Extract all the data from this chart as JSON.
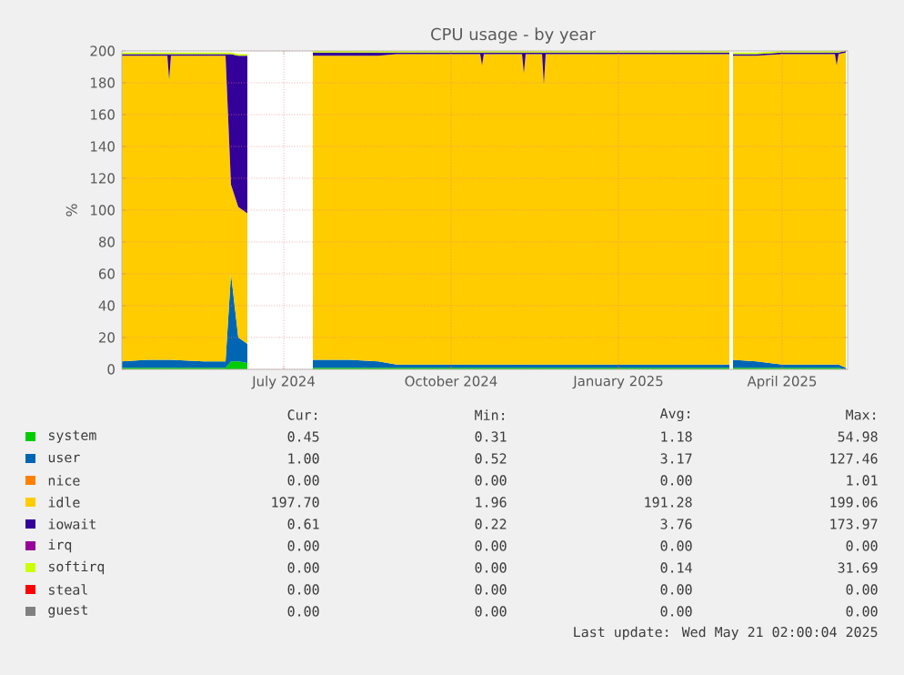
{
  "chart_data": {
    "type": "area",
    "stacked": true,
    "title": "CPU usage - by year",
    "ylabel": "%",
    "x": [
      "2024-04-17",
      "2024-05-01",
      "2024-05-12",
      "2024-05-13",
      "2024-05-14",
      "2024-06-01",
      "2024-06-13",
      "2024-06-16",
      "2024-06-20",
      "2024-06-25",
      "2024-07-10",
      "2024-07-31",
      "2024-08-20",
      "2024-09-05",
      "2024-09-15",
      "2024-10-31",
      "2024-11-01",
      "2024-11-02",
      "2024-11-23",
      "2024-11-24",
      "2024-11-25",
      "2024-12-04",
      "2024-12-05",
      "2024-12-06",
      "2025-01-15",
      "2025-02-15",
      "2025-03-17",
      "2025-03-18",
      "2025-03-19",
      "2025-04-01",
      "2025-04-15",
      "2025-05-14",
      "2025-05-15",
      "2025-05-16",
      "2025-05-20"
    ],
    "series": [
      {
        "name": "system",
        "color": "#00cc00",
        "values": [
          1,
          1,
          1,
          1,
          1,
          1,
          1,
          5,
          5,
          4,
          null,
          1,
          1,
          1,
          1,
          1,
          1,
          1,
          1,
          1,
          1,
          1,
          1,
          1,
          1,
          1,
          1,
          null,
          1,
          1,
          1,
          1,
          1,
          1,
          0
        ]
      },
      {
        "name": "user",
        "color": "#0066b3",
        "values": [
          4,
          5,
          5,
          5,
          5,
          4,
          4,
          55,
          15,
          12,
          null,
          5,
          5,
          4,
          2,
          2,
          2,
          2,
          2,
          2,
          2,
          2,
          2,
          2,
          2,
          2,
          2,
          null,
          5,
          4,
          2,
          2,
          2,
          2,
          1
        ]
      },
      {
        "name": "nice",
        "color": "#ff8000",
        "values": [
          null,
          null,
          null,
          null,
          null,
          null,
          null,
          null,
          null,
          null,
          null,
          null,
          null,
          null,
          null,
          null,
          null,
          null,
          null,
          null,
          null,
          null,
          null,
          null,
          null,
          null,
          null,
          null,
          null,
          null,
          null,
          null,
          null,
          null,
          null
        ]
      },
      {
        "name": "idle",
        "color": "#ffcc00",
        "values": [
          192,
          191,
          191,
          176,
          191,
          192,
          192,
          56,
          82,
          82,
          null,
          191,
          191,
          192,
          195,
          195,
          188,
          195,
          195,
          183,
          195,
          195,
          176,
          195,
          195,
          195,
          195,
          null,
          191,
          192,
          195,
          195,
          188,
          195,
          198
        ]
      },
      {
        "name": "iowait",
        "color": "#330099",
        "values": [
          1,
          1,
          1,
          16,
          1,
          1,
          1,
          82,
          95,
          99,
          null,
          2,
          2,
          2,
          1,
          1,
          8,
          1,
          1,
          13,
          1,
          1,
          20,
          1,
          1,
          1,
          1,
          null,
          1,
          1,
          1,
          1,
          8,
          1,
          1
        ]
      },
      {
        "name": "irq",
        "color": "#990099",
        "values": [
          null,
          null,
          null,
          null,
          null,
          null,
          null,
          null,
          null,
          null,
          null,
          null,
          null,
          null,
          null,
          null,
          null,
          null,
          null,
          null,
          null,
          null,
          null,
          null,
          null,
          null,
          null,
          null,
          null,
          null,
          null,
          null,
          null,
          null,
          null
        ]
      },
      {
        "name": "softirq",
        "color": "#ccff00",
        "values": [
          1,
          1,
          1,
          1,
          1,
          1,
          1,
          1,
          1,
          1,
          null,
          1,
          1,
          1,
          1,
          1,
          1,
          1,
          1,
          1,
          1,
          1,
          1,
          1,
          1,
          1,
          1,
          null,
          1,
          1,
          1,
          1,
          1,
          1,
          0
        ]
      },
      {
        "name": "steal",
        "color": "#ff0000",
        "values": [
          null,
          null,
          null,
          null,
          null,
          null,
          null,
          null,
          null,
          null,
          null,
          null,
          null,
          null,
          null,
          null,
          null,
          null,
          null,
          null,
          null,
          null,
          null,
          null,
          null,
          null,
          null,
          null,
          null,
          null,
          null,
          null,
          null,
          null,
          null
        ]
      },
      {
        "name": "guest",
        "color": "#808080",
        "values": [
          null,
          null,
          null,
          null,
          null,
          null,
          null,
          null,
          null,
          null,
          null,
          null,
          null,
          null,
          null,
          null,
          null,
          null,
          null,
          null,
          null,
          null,
          null,
          null,
          null,
          null,
          null,
          null,
          null,
          null,
          null,
          null,
          null,
          null,
          null
        ]
      }
    ],
    "xlim": [
      "2024-04-17",
      "2025-05-21"
    ],
    "xticks": [
      {
        "value": "2024-07-15",
        "label": "July 2024"
      },
      {
        "value": "2024-10-15",
        "label": "October 2024"
      },
      {
        "value": "2025-01-15",
        "label": "January 2025"
      },
      {
        "value": "2025-04-15",
        "label": "April 2025"
      }
    ],
    "ylim": [
      0,
      200
    ],
    "yticks": [
      0,
      20,
      40,
      60,
      80,
      100,
      120,
      140,
      160,
      180,
      200
    ],
    "grid": true,
    "legend": "bottom",
    "annotations": [
      "Cur:",
      "Min:",
      "Avg:",
      "Max:",
      "0.45",
      "0.31",
      "1.18",
      "54.98",
      "1.00",
      "0.52",
      "3.17",
      "127.46",
      "0.00",
      "0.00",
      "0.00",
      "1.01",
      "197.70",
      "1.96",
      "191.28",
      "199.06",
      "0.61",
      "0.22",
      "3.76",
      "173.97",
      "0.00",
      "0.00",
      "0.00",
      "0.00",
      "0.00",
      "0.00",
      "0.14",
      "31.69",
      "0.00",
      "0.00",
      "0.00",
      "0.00",
      "0.00",
      "0.00",
      "0.00",
      "0.00",
      "Last update: Wed May 21 02:00:04 2025"
    ]
  }
}
